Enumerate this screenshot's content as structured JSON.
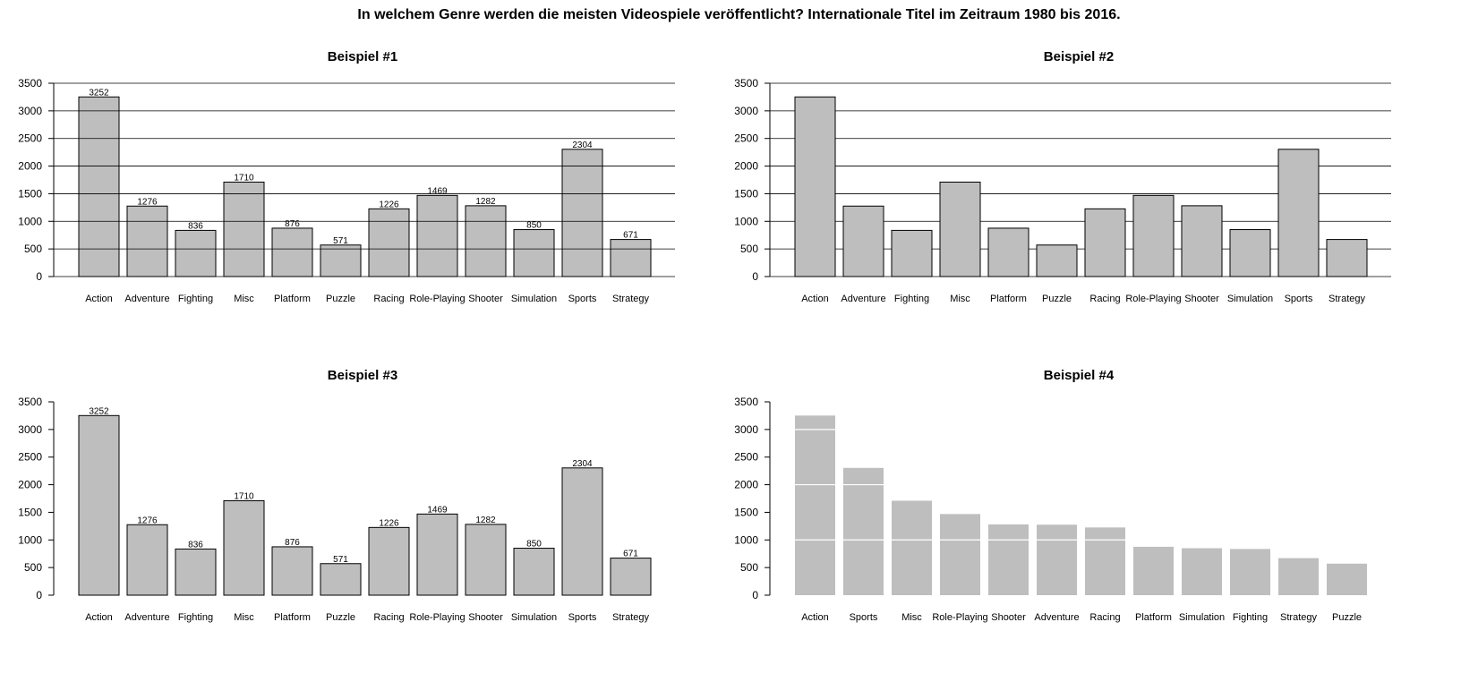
{
  "main_title": "In welchem Genre werden die meisten Videospiele veröffentlicht? Internationale Titel im Zeitraum 1980 bis 2016.",
  "colors": {
    "bar_fill": "#bebebe",
    "bar_stroke": "#000000",
    "grid": "#000000",
    "grid_white": "#ffffff"
  },
  "chart_data": [
    {
      "type": "bar",
      "title": "Beispiel #1",
      "categories": [
        "Action",
        "Adventure",
        "Fighting",
        "Misc",
        "Platform",
        "Puzzle",
        "Racing",
        "Role-Playing",
        "Shooter",
        "Simulation",
        "Sports",
        "Strategy"
      ],
      "values": [
        3252,
        1276,
        836,
        1710,
        876,
        571,
        1226,
        1469,
        1282,
        850,
        2304,
        671
      ],
      "ylim": [
        0,
        3500
      ],
      "yticks": [
        "0",
        "500",
        "1000",
        "1500",
        "2000",
        "2500",
        "3000",
        "3500"
      ],
      "data_labels": true,
      "grid": "horizontal, drawn over bars",
      "bar_outline": true
    },
    {
      "type": "bar",
      "title": "Beispiel #2",
      "categories": [
        "Action",
        "Adventure",
        "Fighting",
        "Misc",
        "Platform",
        "Puzzle",
        "Racing",
        "Role-Playing",
        "Shooter",
        "Simulation",
        "Sports",
        "Strategy"
      ],
      "values": [
        3252,
        1276,
        836,
        1710,
        876,
        571,
        1226,
        1469,
        1282,
        850,
        2304,
        671
      ],
      "ylim": [
        0,
        3500
      ],
      "yticks": [
        "0",
        "500",
        "1000",
        "1500",
        "2000",
        "2500",
        "3000",
        "3500"
      ],
      "data_labels": false,
      "grid": "horizontal, behind bars",
      "bar_outline": true
    },
    {
      "type": "bar",
      "title": "Beispiel #3",
      "categories": [
        "Action",
        "Adventure",
        "Fighting",
        "Misc",
        "Platform",
        "Puzzle",
        "Racing",
        "Role-Playing",
        "Shooter",
        "Simulation",
        "Sports",
        "Strategy"
      ],
      "values": [
        3252,
        1276,
        836,
        1710,
        876,
        571,
        1226,
        1469,
        1282,
        850,
        2304,
        671
      ],
      "ylim": [
        0,
        3500
      ],
      "yticks": [
        "0",
        "500",
        "1000",
        "1500",
        "2000",
        "2500",
        "3000",
        "3500"
      ],
      "data_labels": true,
      "grid": "none",
      "bar_outline": true
    },
    {
      "type": "bar",
      "title": "Beispiel #4",
      "categories": [
        "Action",
        "Sports",
        "Misc",
        "Role-Playing",
        "Shooter",
        "Adventure",
        "Racing",
        "Platform",
        "Simulation",
        "Fighting",
        "Strategy",
        "Puzzle"
      ],
      "values": [
        3252,
        2304,
        1710,
        1469,
        1282,
        1276,
        1226,
        876,
        850,
        836,
        671,
        571
      ],
      "ylim": [
        0,
        3500
      ],
      "yticks": [
        "0",
        "500",
        "1000",
        "1500",
        "2000",
        "2500",
        "3000",
        "3500"
      ],
      "data_labels": false,
      "grid": "white lines at 1000, 2000, 3000 over bars",
      "white_grid_values": [
        1000,
        2000,
        3000
      ],
      "bar_outline": false
    }
  ]
}
